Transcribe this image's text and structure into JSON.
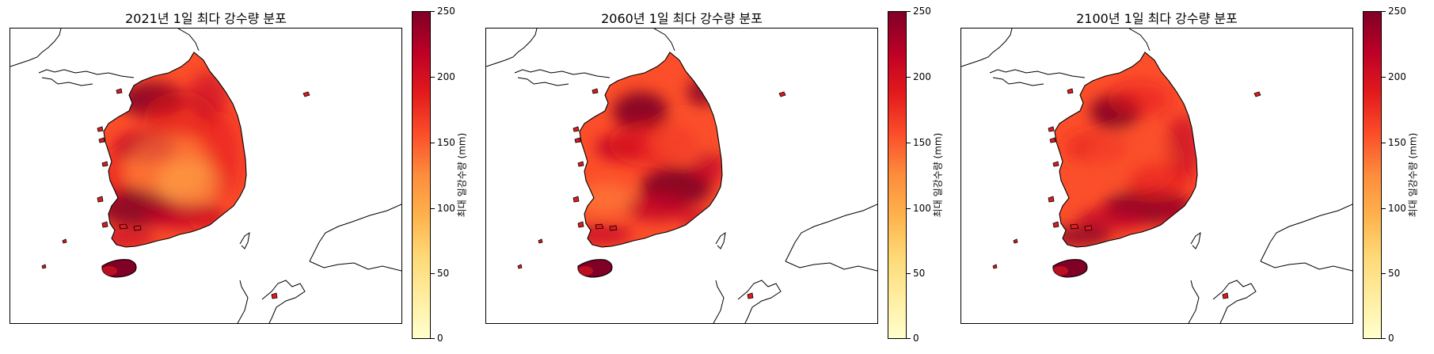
{
  "panels": [
    {
      "title": "2021년 1일 최다 강수량 분포",
      "variant": 0
    },
    {
      "title": "2060년 1일 최다 강수량 분포",
      "variant": 1
    },
    {
      "title": "2100년 1일 최다 강수량 분포",
      "variant": 2
    }
  ],
  "colorbar": {
    "label": "최대 일강수량 (mm)",
    "ticks": [
      "0",
      "50",
      "100",
      "150",
      "200",
      "250"
    ],
    "min": 0,
    "max": 250,
    "colormap": "YlOrRd",
    "colors": [
      "#ffffcc",
      "#ffeda0",
      "#fed976",
      "#feb24c",
      "#fd8d3c",
      "#fc4e2a",
      "#e31a1c",
      "#bd0026",
      "#800026"
    ]
  }
}
